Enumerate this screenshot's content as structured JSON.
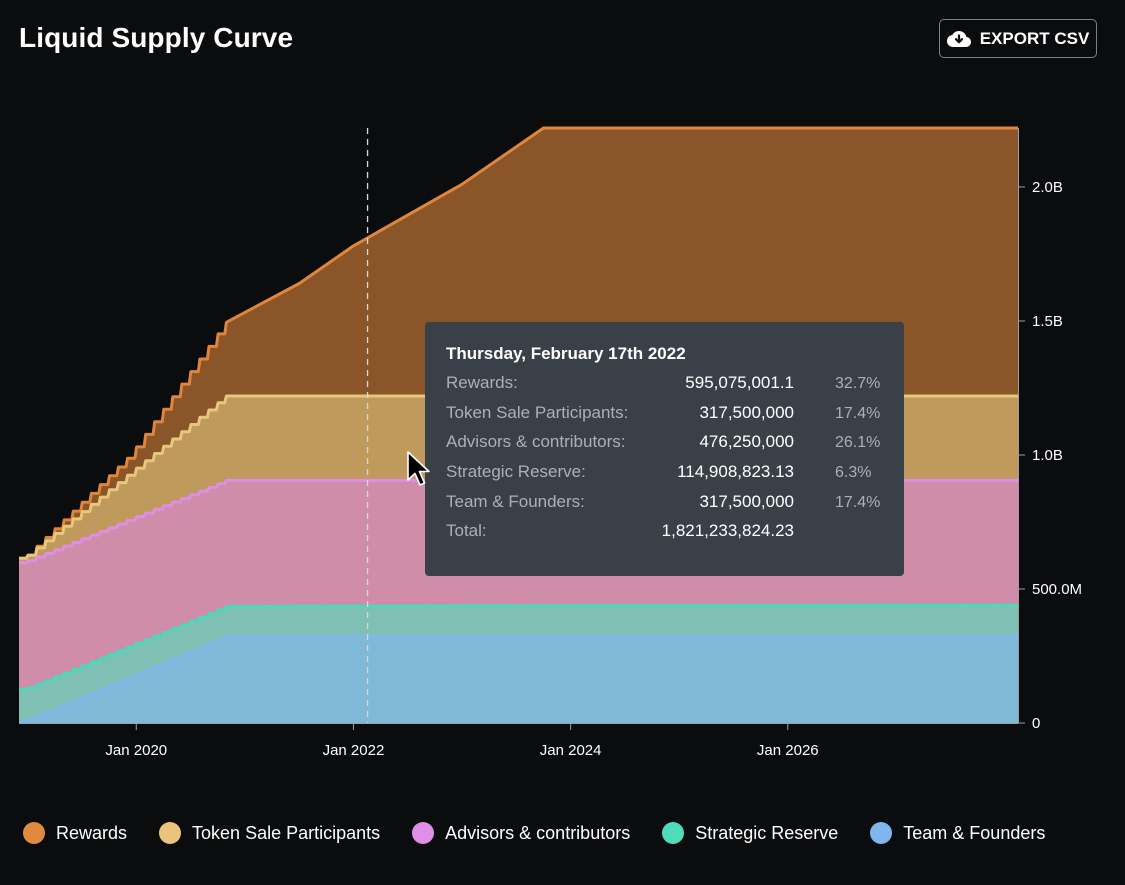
{
  "page": {
    "title": "Liquid Supply Curve",
    "export_label": "EXPORT CSV",
    "export_icon": "cloud-download-icon",
    "cursor_icon": "mouse-pointer-icon"
  },
  "tooltip": {
    "date": "Thursday, February 17th 2022",
    "rows": [
      {
        "label": "Rewards:",
        "value": "595,075,001.1",
        "pct": "32.7%"
      },
      {
        "label": "Token Sale Participants:",
        "value": "317,500,000",
        "pct": "17.4%"
      },
      {
        "label": "Advisors & contributors:",
        "value": "476,250,000",
        "pct": "26.1%"
      },
      {
        "label": "Strategic Reserve:",
        "value": "114,908,823.13",
        "pct": "6.3%"
      },
      {
        "label": "Team & Founders:",
        "value": "317,500,000",
        "pct": "17.4%"
      },
      {
        "label": "Total:",
        "value": "1,821,233,824.23",
        "pct": ""
      }
    ]
  },
  "chart_data": {
    "type": "area",
    "stacked": true,
    "title": "Liquid Supply Curve",
    "x_unit": "year",
    "xlim": [
      2018.92,
      2028.12
    ],
    "ylim": [
      0,
      2220000000
    ],
    "x_ticks": [
      {
        "value": 2020.0,
        "label": "Jan 2020"
      },
      {
        "value": 2022.0,
        "label": "Jan 2022"
      },
      {
        "value": 2024.0,
        "label": "Jan 2024"
      },
      {
        "value": 2026.0,
        "label": "Jan 2026"
      }
    ],
    "y_ticks": [
      {
        "value": 0,
        "label": "0"
      },
      {
        "value": 500000000,
        "label": "500.0M"
      },
      {
        "value": 1000000000,
        "label": "1.0B"
      },
      {
        "value": 1500000000,
        "label": "1.5B"
      },
      {
        "value": 2000000000,
        "label": "2.0B"
      }
    ],
    "legend_position": "bottom",
    "series": [
      {
        "name": "Team & Founders",
        "color": "#7fb8e8",
        "fill": "#80b8d8",
        "points": [
          [
            2018.92,
            5000000
          ],
          [
            2019.0,
            12000000
          ],
          [
            2020.83,
            325000000
          ],
          [
            2028.12,
            325000000
          ]
        ]
      },
      {
        "name": "Strategic Reserve",
        "color": "#4dd8b8",
        "fill": "#80c0b4",
        "points": [
          [
            2018.92,
            125000000
          ],
          [
            2019.0,
            130000000
          ],
          [
            2020.83,
            435000000
          ],
          [
            2028.12,
            440000000
          ]
        ]
      },
      {
        "name": "Advisors & contributors",
        "color": "#df8ee6",
        "fill": "#d08daa",
        "points": [
          [
            2018.92,
            598000000
          ],
          [
            2019.0,
            605000000
          ],
          [
            2020.83,
            905000000
          ],
          [
            2028.12,
            905000000
          ]
        ]
      },
      {
        "name": "Token Sale Participants",
        "color": "#e8c77a",
        "fill": "#bf9a5c",
        "points": [
          [
            2018.92,
            615000000
          ],
          [
            2019.0,
            625000000
          ],
          [
            2020.83,
            1220000000
          ],
          [
            2028.12,
            1220000000
          ]
        ]
      },
      {
        "name": "Rewards",
        "color": "#e0853a",
        "fill": "#8a5529",
        "points": [
          [
            2018.92,
            615000000
          ],
          [
            2019.0,
            625000000
          ],
          [
            2019.95,
            1000000000
          ],
          [
            2020.83,
            1495000000
          ],
          [
            2021.5,
            1640000000
          ],
          [
            2022.0,
            1780000000
          ],
          [
            2023.0,
            2010000000
          ],
          [
            2023.75,
            2220000000
          ],
          [
            2028.12,
            2220000000
          ]
        ]
      }
    ],
    "hover_x": 2022.13
  },
  "legend": [
    {
      "name": "Rewards",
      "color": "#df8a3f"
    },
    {
      "name": "Token Sale Participants",
      "color": "#e8c47c"
    },
    {
      "name": "Advisors & contributors",
      "color": "#df8fe6"
    },
    {
      "name": "Strategic Reserve",
      "color": "#4fdcbb"
    },
    {
      "name": "Team & Founders",
      "color": "#7fb6ee"
    }
  ]
}
